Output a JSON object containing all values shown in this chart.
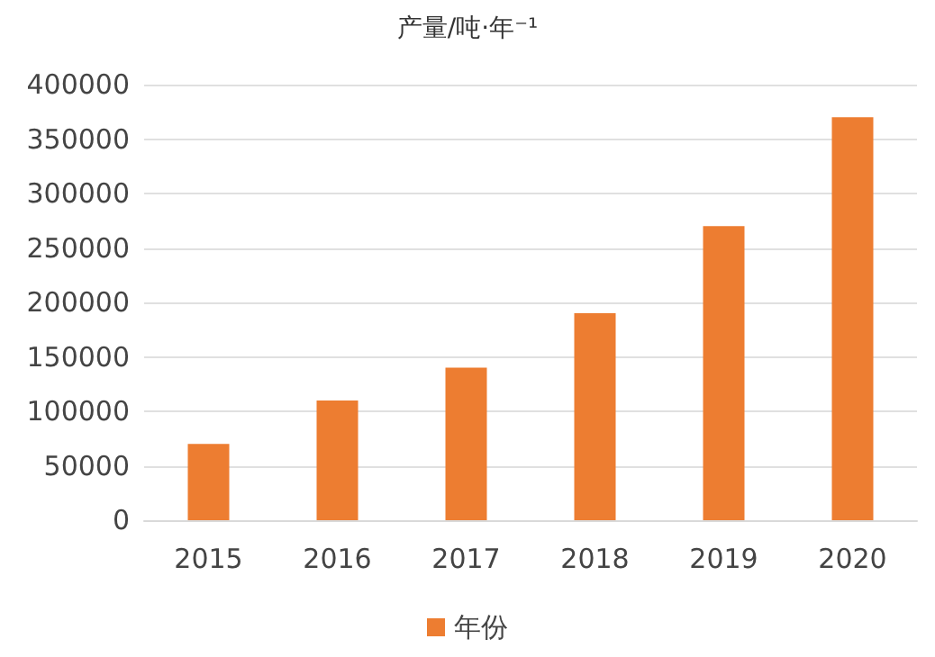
{
  "chart_data": {
    "type": "bar",
    "title": "产量/吨·年⁻¹",
    "categories": [
      "2015",
      "2016",
      "2017",
      "2018",
      "2019",
      "2020"
    ],
    "series": [
      {
        "name": "年份",
        "color": "#ed7d31",
        "values": [
          70000,
          110000,
          140000,
          190000,
          270000,
          370000
        ]
      }
    ],
    "ylim": [
      0,
      400000
    ],
    "yticks": [
      0,
      50000,
      100000,
      150000,
      200000,
      250000,
      300000,
      350000,
      400000
    ],
    "grid": "y",
    "legend": "bottom"
  }
}
